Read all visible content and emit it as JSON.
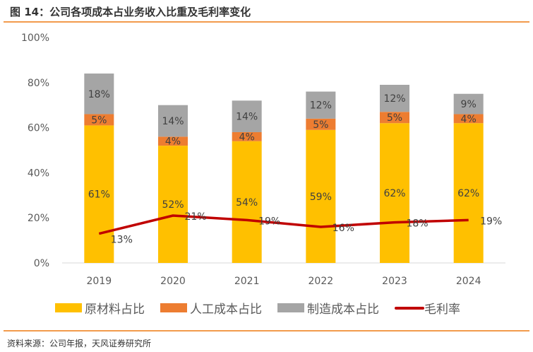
{
  "title": "图 14：公司各项成本占业务收入比重及毛利率变化",
  "source": "资料来源：公司年报，天风证券研究所",
  "chart_data": {
    "type": "bar",
    "stacked": true,
    "categories": [
      "2019",
      "2020",
      "2021",
      "2022",
      "2023",
      "2024"
    ],
    "ylim": [
      0,
      100
    ],
    "yticks": [
      "0%",
      "20%",
      "40%",
      "60%",
      "80%",
      "100%"
    ],
    "grid": false,
    "legend_position": "bottom",
    "series": [
      {
        "name": "原材料占比",
        "type": "bar",
        "color": "#ffc000",
        "values": [
          61,
          52,
          54,
          59,
          62,
          62
        ],
        "labels": [
          "61%",
          "52%",
          "54%",
          "59%",
          "62%",
          "62%"
        ]
      },
      {
        "name": "人工成本占比",
        "type": "bar",
        "color": "#ed7d31",
        "values": [
          5,
          4,
          4,
          5,
          5,
          4
        ],
        "labels": [
          "5%",
          "4%",
          "4%",
          "5%",
          "5%",
          "4%"
        ]
      },
      {
        "name": "制造成本占比",
        "type": "bar",
        "color": "#a5a5a5",
        "values": [
          18,
          14,
          14,
          12,
          12,
          9
        ],
        "labels": [
          "18%",
          "14%",
          "14%",
          "12%",
          "12%",
          "9%"
        ]
      },
      {
        "name": "毛利率",
        "type": "line",
        "color": "#c00000",
        "values": [
          13,
          21,
          19,
          16,
          18,
          19
        ],
        "labels": [
          "13%",
          "21%",
          "19%",
          "16%",
          "18%",
          "19%"
        ]
      }
    ]
  }
}
